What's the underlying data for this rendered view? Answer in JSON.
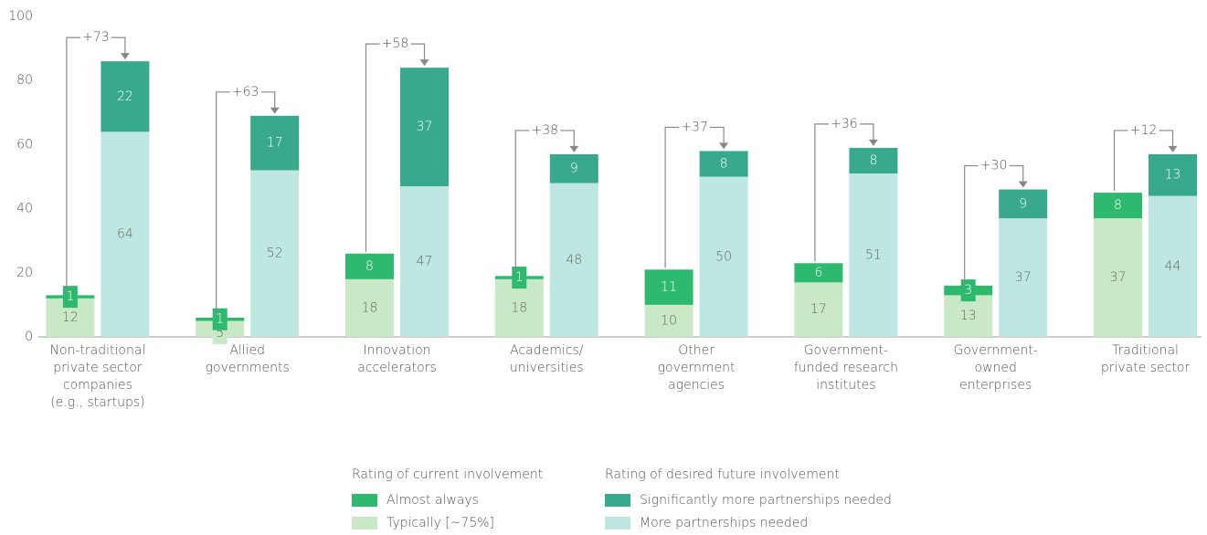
{
  "chart_data": {
    "type": "grouped_stacked_bar",
    "categories": [
      [
        "Non-traditional",
        "private sector",
        "companies",
        "(e.g., startups)"
      ],
      [
        "Allied",
        "governments"
      ],
      [
        "Innovation",
        "accelerators"
      ],
      [
        "Academics/",
        "universities"
      ],
      [
        "Other",
        "government",
        "agencies"
      ],
      [
        "Government-",
        "funded research",
        "institutes"
      ],
      [
        "Government-",
        "owned",
        "enterprises"
      ],
      [
        "Traditional",
        "private sector"
      ]
    ],
    "groups": [
      {
        "name": "Rating of current involvement",
        "series": [
          {
            "name": "Typically [~75%]",
            "color": "#c9e8c5",
            "values": [
              12,
              5,
              18,
              18,
              10,
              17,
              13,
              37
            ]
          },
          {
            "name": "Almost always",
            "color": "#2dba6e",
            "values": [
              1,
              1,
              8,
              1,
              11,
              6,
              3,
              8
            ]
          }
        ]
      },
      {
        "name": "Rating of desired future involvement",
        "series": [
          {
            "name": "More partnerships needed",
            "color": "#bfe7e1",
            "values": [
              64,
              52,
              47,
              48,
              50,
              51,
              37,
              44
            ]
          },
          {
            "name": "Significantly more partnerships needed",
            "color": "#38a98c",
            "values": [
              22,
              17,
              37,
              9,
              8,
              8,
              9,
              13
            ]
          }
        ]
      }
    ],
    "annotations": [
      "+73",
      "+63",
      "+58",
      "+38",
      "+37",
      "+36",
      "+30",
      "+12"
    ],
    "ylim": [
      0,
      100
    ],
    "yticks": [
      0,
      20,
      40,
      60,
      80,
      100
    ],
    "grid": false
  }
}
